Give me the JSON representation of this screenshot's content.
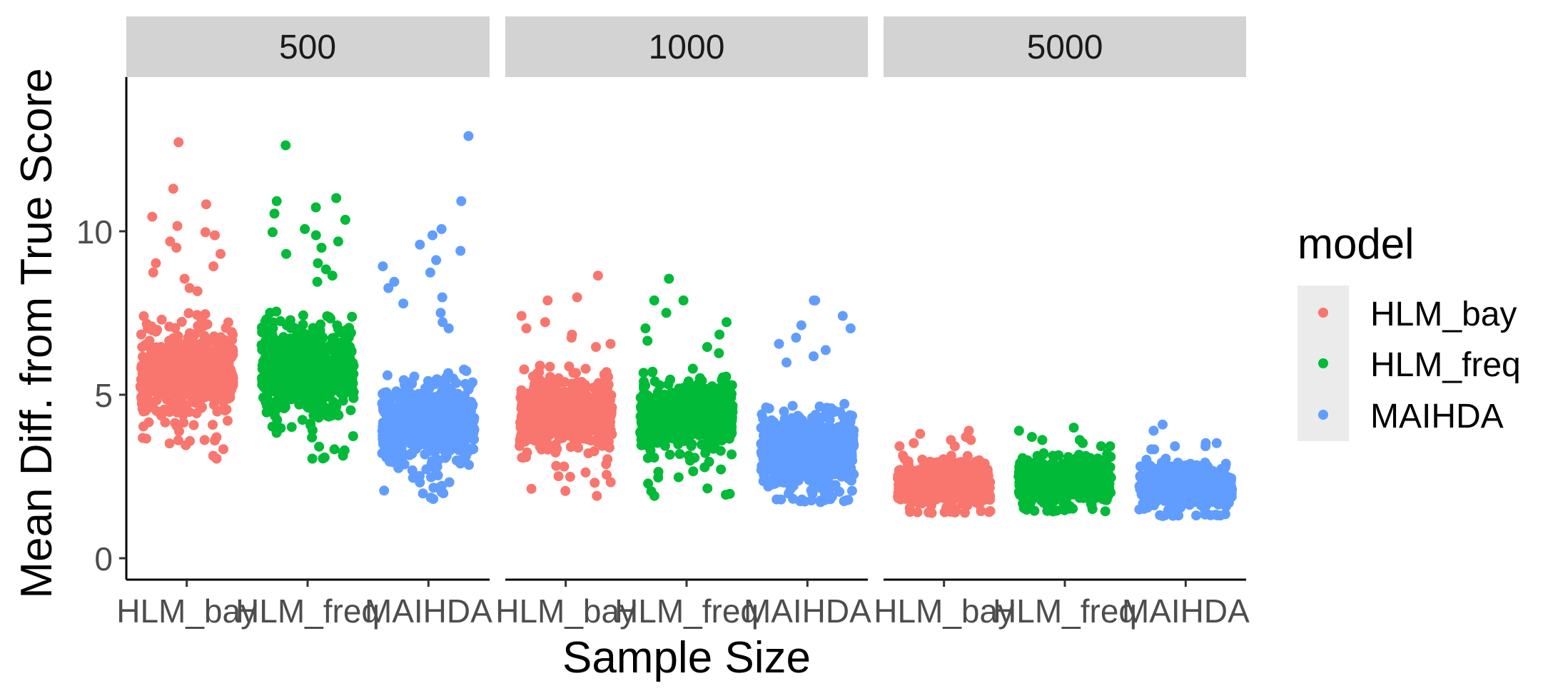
{
  "chart_data": {
    "type": "scatter",
    "subtype": "jittered-strip",
    "ylabel": "Mean Diff. from True Score",
    "xlabel": "Sample Size",
    "ylim": [
      -1.3,
      14.9
    ],
    "yticks": [
      0,
      5,
      10
    ],
    "grid": false,
    "facets": [
      "500",
      "1000",
      "5000"
    ],
    "categories": [
      "HLM_bay",
      "HLM_freq",
      "MAIHDA"
    ],
    "legend": {
      "title": "model",
      "position": "right",
      "items": [
        "HLM_bay",
        "HLM_freq",
        "MAIHDA"
      ]
    },
    "colors": {
      "HLM_bay": "#F8766D",
      "HLM_freq": "#00BA38",
      "MAIHDA": "#619CFF"
    },
    "series": [
      {
        "facet": "500",
        "model": "HLM_bay",
        "core_range": [
          3.5,
          7.3
        ],
        "min": 2.6,
        "max": 12.8,
        "outliers_high": [
          12.8,
          11.3,
          10.8,
          10.4,
          10.1,
          9.9,
          9.8,
          9.6,
          9.4,
          9.2,
          8.9,
          8.8,
          8.6,
          8.4,
          8.1,
          8.0
        ]
      },
      {
        "facet": "500",
        "model": "HLM_freq",
        "core_range": [
          3.6,
          7.5
        ],
        "min": 2.6,
        "max": 12.7,
        "outliers_high": [
          12.7,
          11.0,
          10.9,
          10.7,
          10.5,
          10.3,
          10.0,
          9.9,
          9.8,
          9.6,
          9.4,
          9.2,
          8.9,
          8.7,
          8.5,
          8.3
        ]
      },
      {
        "facet": "500",
        "model": "MAIHDA",
        "core_range": [
          2.0,
          5.5
        ],
        "min": 1.3,
        "max": 13.0,
        "outliers_high": [
          13.0,
          10.9,
          10.0,
          9.8,
          9.5,
          9.3,
          9.0,
          8.8,
          8.6,
          8.3,
          8.1,
          7.8,
          7.6,
          7.3,
          7.0,
          6.8
        ]
      },
      {
        "facet": "1000",
        "model": "HLM_bay",
        "core_range": [
          2.6,
          5.6
        ],
        "min": 1.4,
        "max": 8.5,
        "outliers_high": [
          8.5,
          7.8,
          7.7,
          7.2,
          7.0,
          6.8,
          6.6,
          6.5,
          6.3,
          6.2
        ]
      },
      {
        "facet": "1000",
        "model": "HLM_freq",
        "core_range": [
          2.5,
          5.5
        ],
        "min": 1.4,
        "max": 8.4,
        "outliers_high": [
          8.4,
          7.7,
          7.7,
          7.3,
          7.0,
          6.8,
          6.6,
          6.4,
          6.2,
          6.0
        ]
      },
      {
        "facet": "1000",
        "model": "MAIHDA",
        "core_range": [
          1.3,
          4.5
        ],
        "min": 1.2,
        "max": 7.7,
        "outliers_high": [
          7.7,
          7.7,
          7.2,
          6.9,
          6.8,
          6.5,
          6.3,
          6.1,
          5.9,
          5.7
        ]
      },
      {
        "facet": "5000",
        "model": "HLM_bay",
        "core_range": [
          0.95,
          2.7
        ],
        "min": 0.85,
        "max": 3.5,
        "outliers_high": [
          3.5,
          3.4,
          3.3,
          3.2,
          3.2,
          3.1,
          3.0,
          3.0
        ]
      },
      {
        "facet": "5000",
        "model": "HLM_freq",
        "core_range": [
          1.0,
          2.8
        ],
        "min": 0.9,
        "max": 3.6,
        "outliers_high": [
          3.6,
          3.5,
          3.3,
          3.2,
          3.2,
          3.1,
          3.0,
          3.0
        ]
      },
      {
        "facet": "5000",
        "model": "MAIHDA",
        "core_range": [
          0.85,
          2.6
        ],
        "min": 0.75,
        "max": 3.7,
        "outliers_high": [
          3.7,
          3.5,
          3.1,
          3.1,
          3.0,
          3.0,
          2.9,
          2.9
        ]
      }
    ]
  }
}
